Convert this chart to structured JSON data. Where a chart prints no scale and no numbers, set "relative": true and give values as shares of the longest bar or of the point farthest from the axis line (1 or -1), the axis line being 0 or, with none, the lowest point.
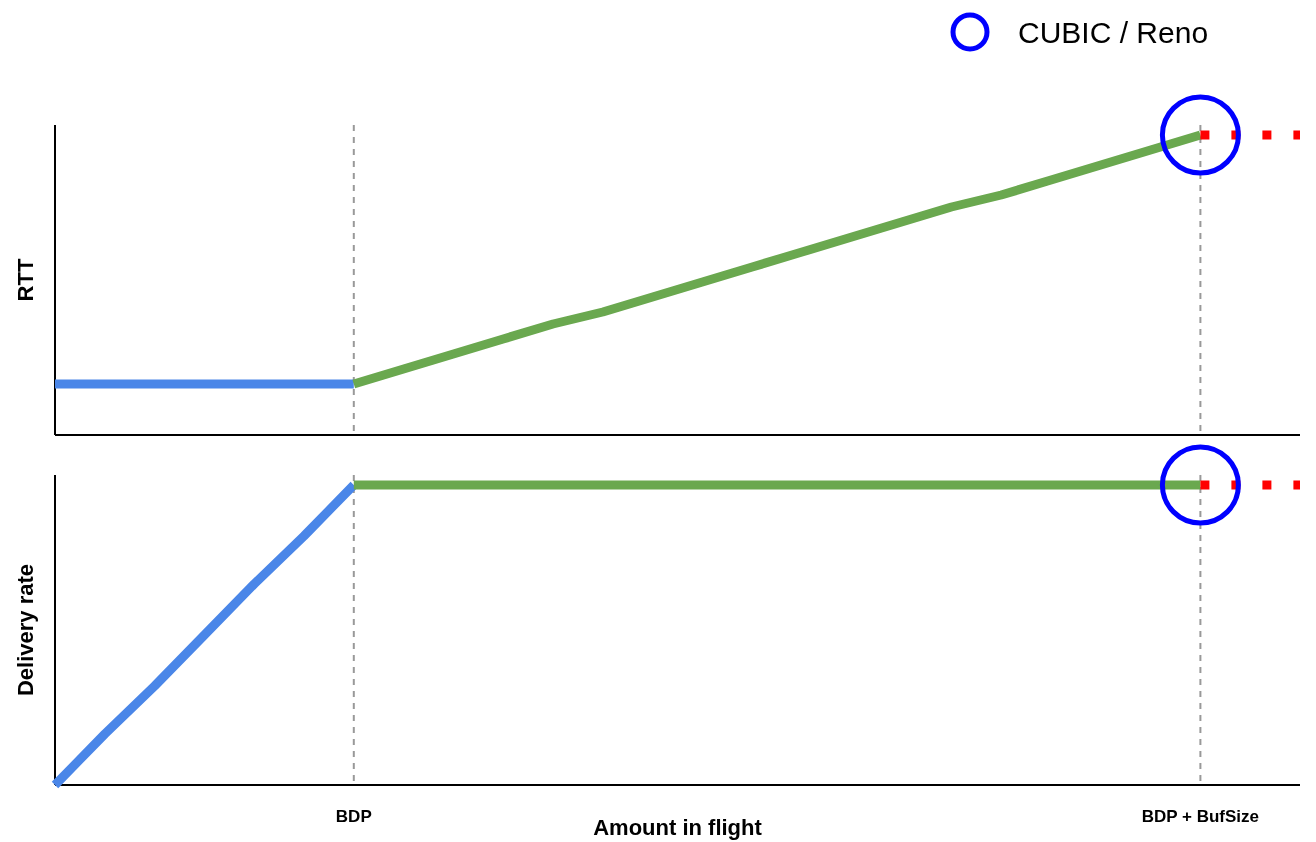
{
  "chart_data": [
    {
      "type": "line",
      "ylabel": "RTT",
      "relative": true,
      "categories": [
        null,
        null,
        null,
        null,
        null,
        null,
        "BDP",
        null,
        null,
        null,
        null,
        null,
        null,
        null,
        null,
        null,
        null,
        null,
        null,
        null,
        null,
        null,
        null,
        "BDP + BufSize",
        null,
        null
      ],
      "tick_labels": false,
      "legend": "top right",
      "grid": false,
      "ref_lines": [
        {
          "axis": "x",
          "value": "BDP",
          "color": "#999999",
          "line_style": "dashed"
        },
        {
          "axis": "x",
          "value": "BDP + BufSize",
          "color": "#999999",
          "line_style": "dashed"
        }
      ],
      "series": [
        {
          "color": "#4a86e8",
          "values": [
            0.17,
            0.17,
            0.17,
            0.17,
            0.17,
            0.17,
            0.17,
            null,
            null,
            null,
            null,
            null,
            null,
            null,
            null,
            null,
            null,
            null,
            null,
            null,
            null,
            null,
            null,
            null,
            null,
            null
          ]
        },
        {
          "color": "#6aa84f",
          "values": [
            null,
            null,
            null,
            null,
            null,
            null,
            0.17,
            0.22,
            0.27,
            0.32,
            0.37,
            0.41,
            0.46,
            0.51,
            0.56,
            0.61,
            0.66,
            0.71,
            0.76,
            0.8,
            0.85,
            0.9,
            0.95,
            1,
            null,
            null
          ]
        },
        {
          "color": "#ff0000",
          "line_style": "dotted",
          "values": [
            null,
            null,
            null,
            null,
            null,
            null,
            null,
            null,
            null,
            null,
            null,
            null,
            null,
            null,
            null,
            null,
            null,
            null,
            null,
            null,
            null,
            null,
            null,
            1,
            1,
            1
          ]
        },
        {
          "type": "scatter",
          "name": "CUBIC / Reno",
          "color": "#0000ff",
          "marker": "circle",
          "values": [
            null,
            null,
            null,
            null,
            null,
            null,
            null,
            null,
            null,
            null,
            null,
            null,
            null,
            null,
            null,
            null,
            null,
            null,
            null,
            null,
            null,
            null,
            null,
            1,
            null,
            null
          ]
        }
      ]
    },
    {
      "type": "line",
      "ylabel": "Delivery rate",
      "xlabel": "Amount in flight",
      "relative": true,
      "categories": [
        null,
        null,
        null,
        null,
        null,
        null,
        "BDP",
        null,
        null,
        null,
        null,
        null,
        null,
        null,
        null,
        null,
        null,
        null,
        null,
        null,
        null,
        null,
        null,
        "BDP + BufSize",
        null,
        null
      ],
      "grid": false,
      "ref_lines": [
        {
          "axis": "x",
          "value": "BDP",
          "color": "#999999",
          "line_style": "dashed"
        },
        {
          "axis": "x",
          "value": "BDP + BufSize",
          "color": "#999999",
          "line_style": "dashed"
        }
      ],
      "series": [
        {
          "color": "#4a86e8",
          "values": [
            0,
            0.17,
            0.33,
            0.5,
            0.67,
            0.83,
            1,
            null,
            null,
            null,
            null,
            null,
            null,
            null,
            null,
            null,
            null,
            null,
            null,
            null,
            null,
            null,
            null,
            null,
            null,
            null
          ]
        },
        {
          "color": "#6aa84f",
          "values": [
            null,
            null,
            null,
            null,
            null,
            null,
            1,
            1,
            1,
            1,
            1,
            1,
            1,
            1,
            1,
            1,
            1,
            1,
            1,
            1,
            1,
            1,
            1,
            1,
            null,
            null
          ]
        },
        {
          "color": "#ff0000",
          "line_style": "dotted",
          "values": [
            null,
            null,
            null,
            null,
            null,
            null,
            null,
            null,
            null,
            null,
            null,
            null,
            null,
            null,
            null,
            null,
            null,
            null,
            null,
            null,
            null,
            null,
            null,
            1,
            1,
            1
          ]
        },
        {
          "type": "scatter",
          "color": "#0000ff",
          "marker": "circle",
          "values": [
            null,
            null,
            null,
            null,
            null,
            null,
            null,
            null,
            null,
            null,
            null,
            null,
            null,
            null,
            null,
            null,
            null,
            null,
            null,
            null,
            null,
            null,
            null,
            1,
            null,
            null
          ]
        }
      ]
    }
  ]
}
